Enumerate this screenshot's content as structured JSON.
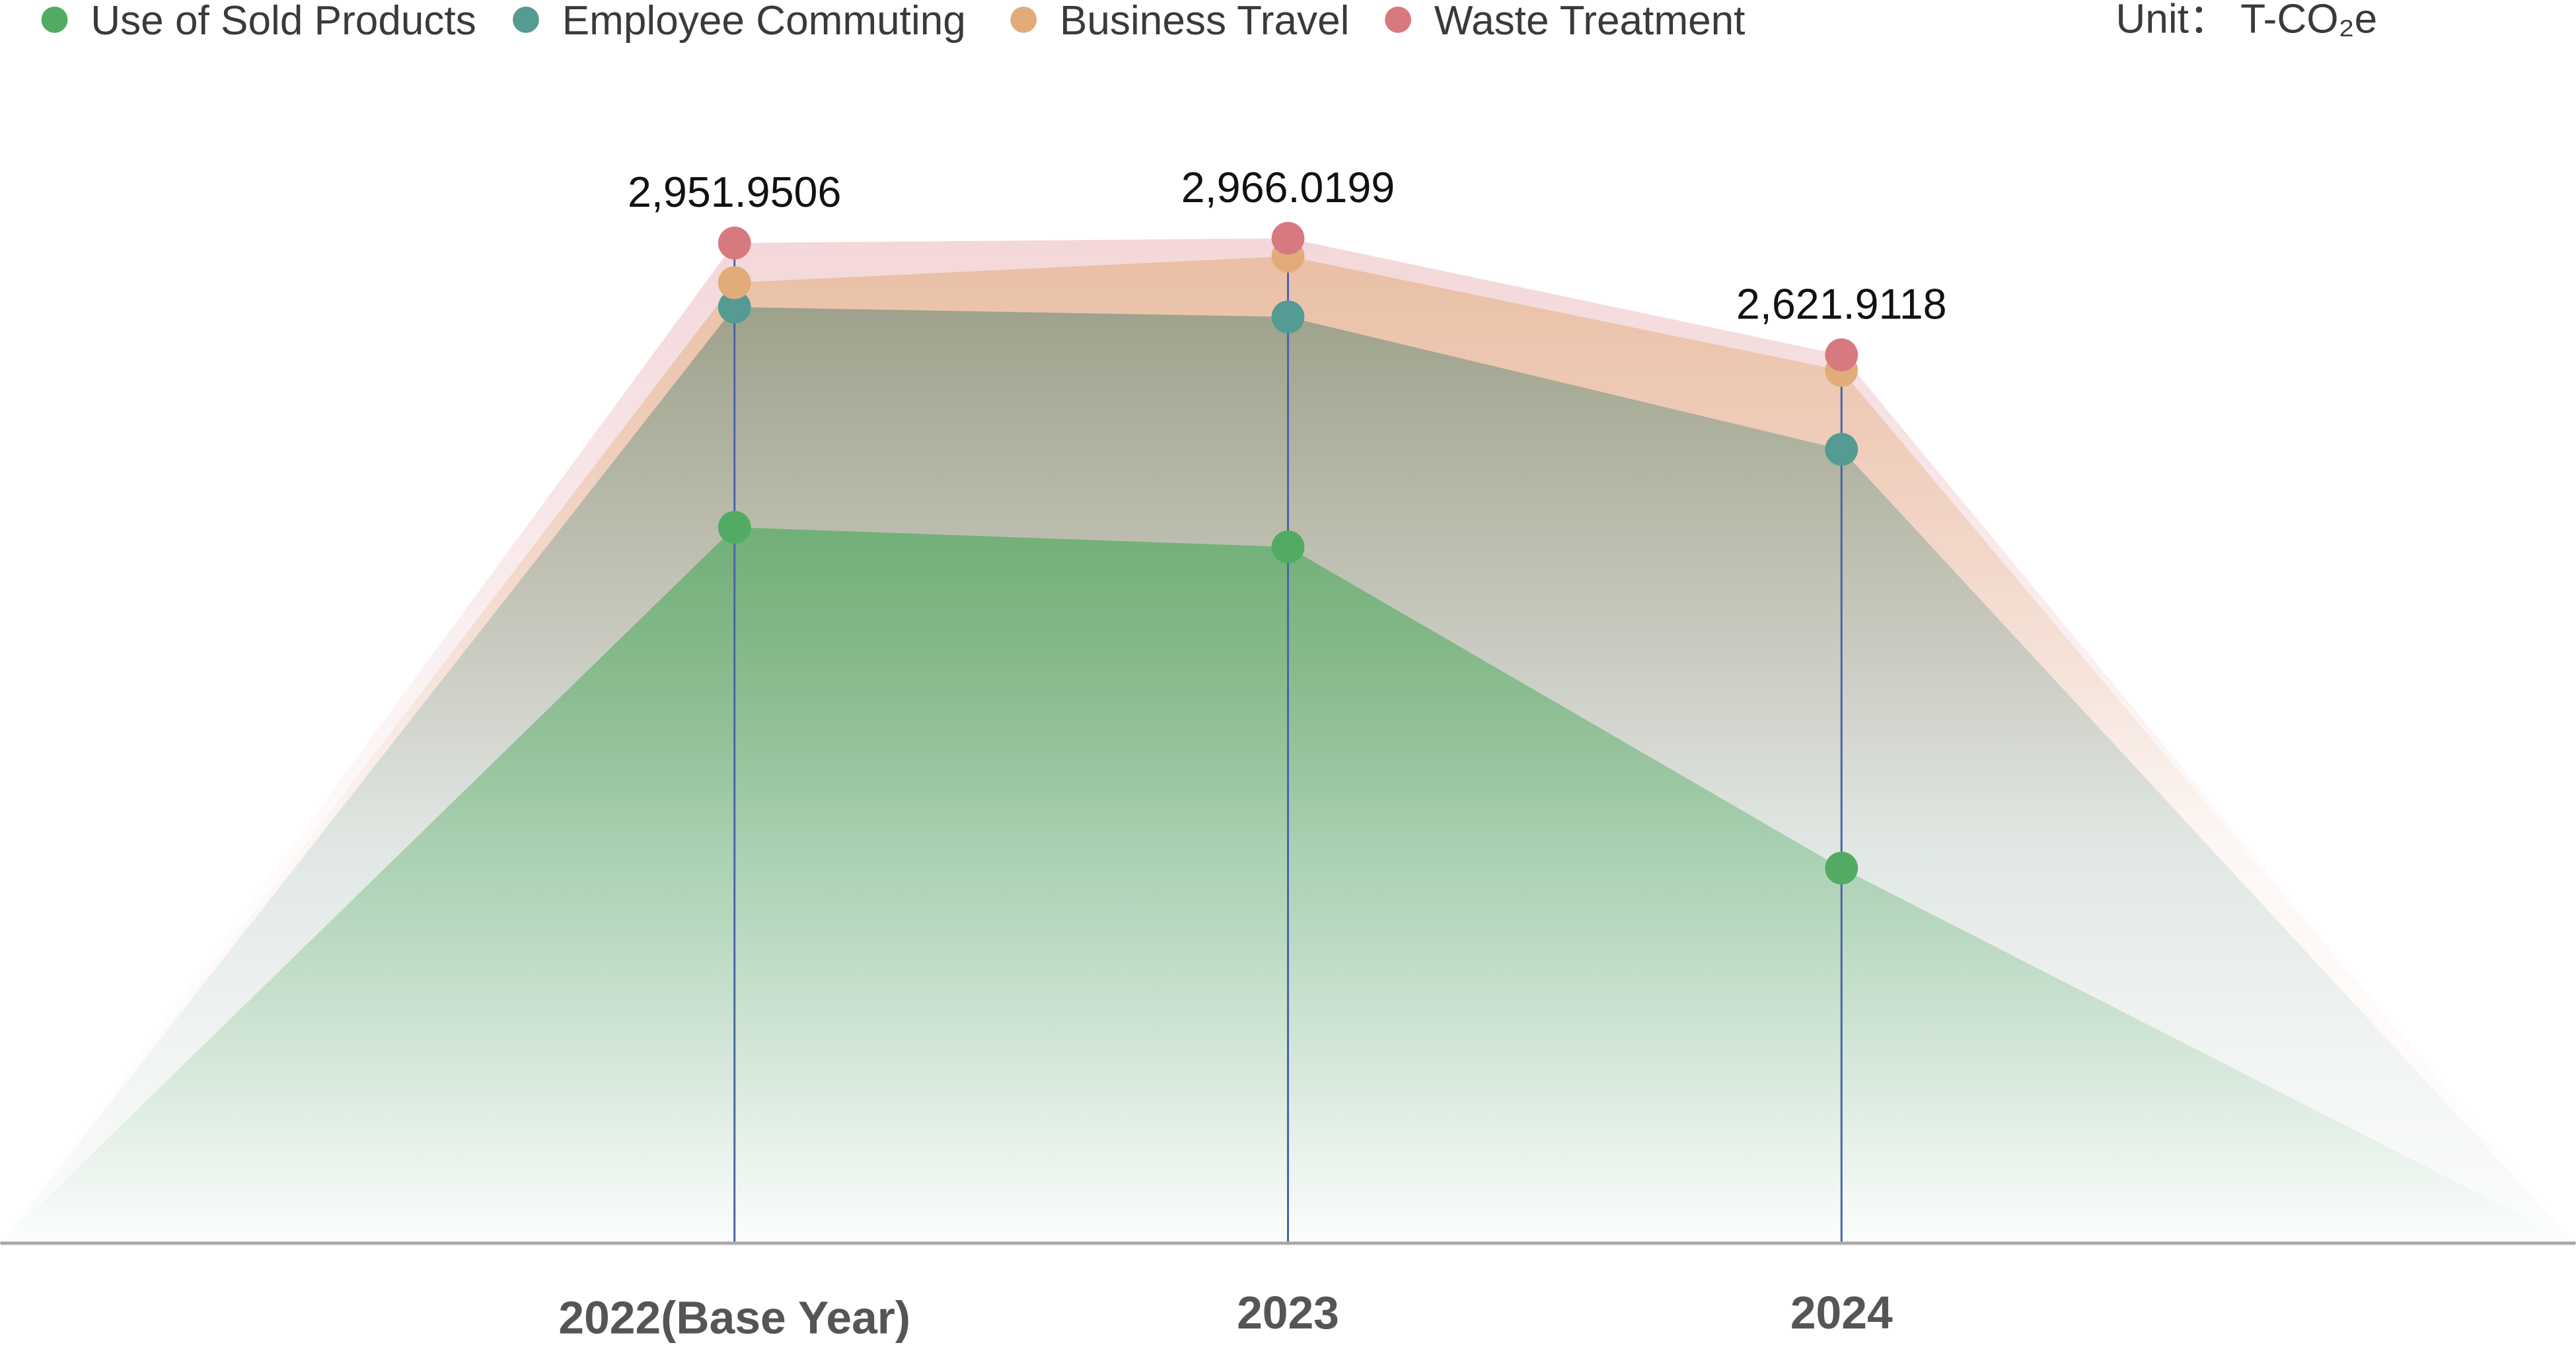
{
  "chart_data": {
    "type": "area",
    "stacked": true,
    "title": "",
    "unit_label": "Unit： T-CO₂e",
    "categories": [
      "2022(Base Year)",
      "2023",
      "2024"
    ],
    "series": [
      {
        "name": "Use of Sold Products",
        "color": "#52ab62",
        "values": [
          2113,
          2055,
          1107
        ]
      },
      {
        "name": "Employee Commuting",
        "color": "#539b93",
        "values": [
          650,
          679,
          1236
        ]
      },
      {
        "name": "Business Travel",
        "color": "#e2ac7a",
        "values": [
          72,
          179,
          233
        ]
      },
      {
        "name": "Waste Treatment",
        "color": "#d87980",
        "values": [
          117,
          53,
          46
        ]
      }
    ],
    "totals": [
      "2,951.9506",
      "2,966.0199",
      "2,621.9118"
    ],
    "ylim": [
      0,
      3000
    ],
    "grid": false,
    "legend_position": "top-left"
  }
}
